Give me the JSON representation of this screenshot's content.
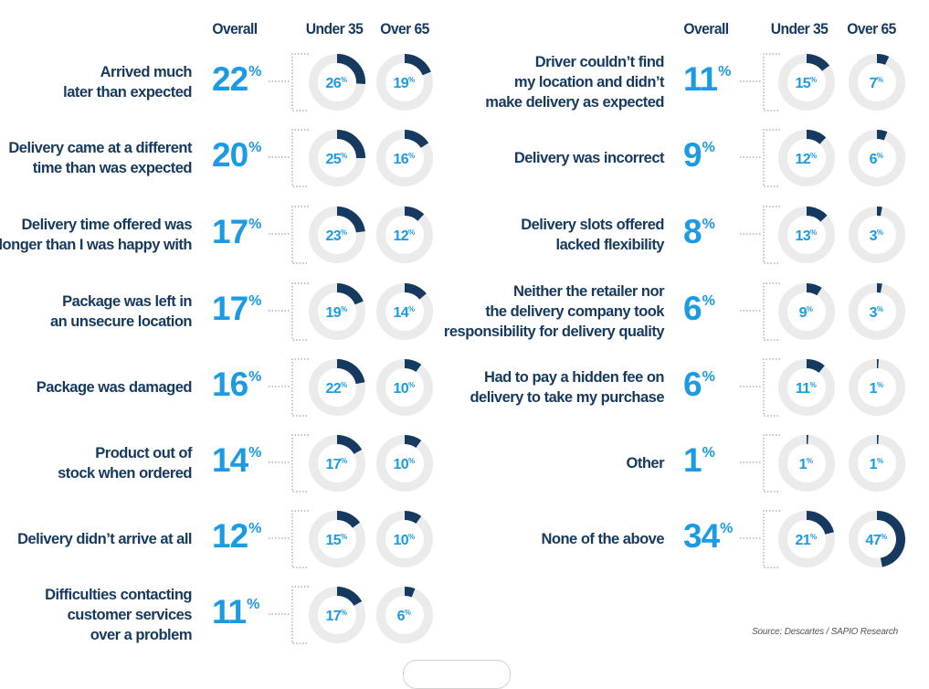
{
  "headers": {
    "left": {
      "overall": "Overall",
      "under35": "Under 35",
      "over65": "Over 65"
    },
    "right": {
      "overall": "Overall",
      "under35": "Under 35",
      "over65": "Over 65"
    }
  },
  "source": "Source: Descartes / SAPIO Research",
  "colors": {
    "navy": "#163a5f",
    "accent_blue": "#1a9be4",
    "ring_track": "#ebebeb",
    "connector": "#a0a0a0"
  },
  "chart_data": {
    "type": "donut-grid",
    "unit": "%",
    "groups": [
      "Overall",
      "Under 35",
      "Over 65"
    ],
    "items": [
      {
        "label": [
          "Arrived much",
          "later than expected"
        ],
        "overall": 22,
        "under35": 26,
        "over65": 19
      },
      {
        "label": [
          "Delivery came at a different",
          "time than was expected"
        ],
        "overall": 20,
        "under35": 25,
        "over65": 16
      },
      {
        "label": [
          "Delivery time offered was",
          "longer than I was happy with"
        ],
        "overall": 17,
        "under35": 23,
        "over65": 12
      },
      {
        "label": [
          "Package was left in",
          "an unsecure location"
        ],
        "overall": 17,
        "under35": 19,
        "over65": 14
      },
      {
        "label": [
          "Package was damaged"
        ],
        "overall": 16,
        "under35": 22,
        "over65": 10
      },
      {
        "label": [
          "Product out of",
          "stock when ordered"
        ],
        "overall": 14,
        "under35": 17,
        "over65": 10
      },
      {
        "label": [
          "Delivery didn’t arrive at all"
        ],
        "overall": 12,
        "under35": 15,
        "over65": 10
      },
      {
        "label": [
          "Difficulties contacting",
          "customer services",
          "over a problem"
        ],
        "overall": 11,
        "under35": 17,
        "over65": 6
      },
      {
        "label": [
          "Driver couldn’t find",
          "my location and didn’t",
          "make delivery as expected"
        ],
        "overall": 11,
        "under35": 15,
        "over65": 7
      },
      {
        "label": [
          "Delivery was incorrect"
        ],
        "overall": 9,
        "under35": 12,
        "over65": 6
      },
      {
        "label": [
          "Delivery slots offered",
          "lacked flexibility"
        ],
        "overall": 8,
        "under35": 13,
        "over65": 3
      },
      {
        "label": [
          "Neither the retailer nor",
          "the delivery company took",
          "responsibility for delivery quality"
        ],
        "overall": 6,
        "under35": 9,
        "over65": 3
      },
      {
        "label": [
          "Had to pay a hidden fee on",
          "delivery to take my purchase"
        ],
        "overall": 6,
        "under35": 11,
        "over65": 1
      },
      {
        "label": [
          "Other"
        ],
        "overall": 1,
        "under35": 1,
        "over65": 1
      },
      {
        "label": [
          "None of the above"
        ],
        "overall": 34,
        "under35": 21,
        "over65": 47
      }
    ]
  }
}
